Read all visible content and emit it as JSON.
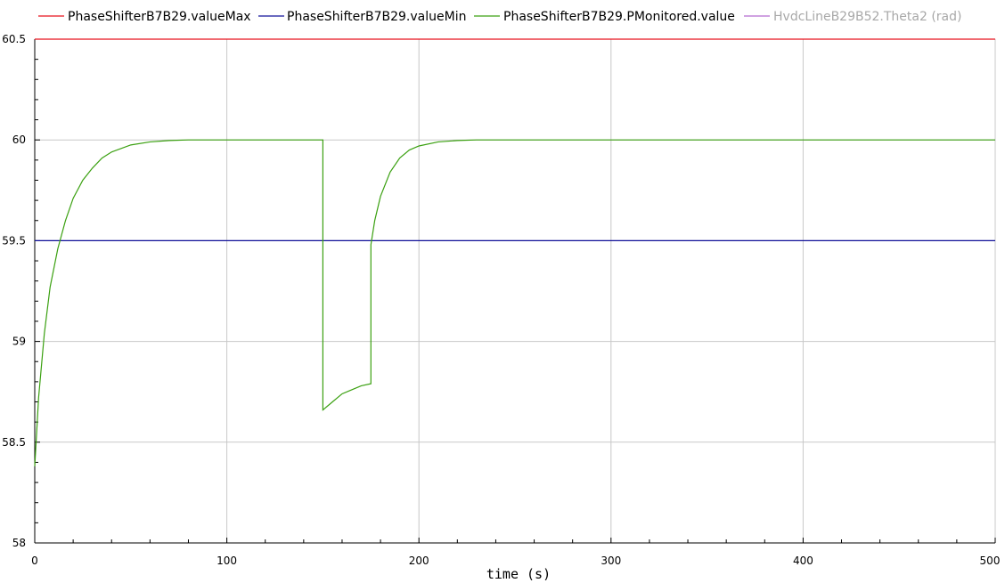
{
  "chart_data": {
    "type": "line",
    "xlabel": "time (s)",
    "ylabel": "",
    "xlim": [
      0,
      500
    ],
    "ylim": [
      58,
      60.5
    ],
    "x_ticks": [
      "0",
      "100",
      "200",
      "300",
      "400",
      "500"
    ],
    "y_ticks": [
      "58",
      "58.5",
      "59",
      "59.5",
      "60",
      "60.5"
    ],
    "grid": true,
    "legend_position": "top",
    "series": [
      {
        "name": "PhaseShifterB7B29.valueMax",
        "color": "#e8101c",
        "visible": true,
        "x": [
          0,
          500
        ],
        "y": [
          60.5,
          60.5
        ]
      },
      {
        "name": "PhaseShifterB7B29.valueMin",
        "color": "#10109a",
        "visible": true,
        "x": [
          0,
          500
        ],
        "y": [
          59.5,
          59.5
        ]
      },
      {
        "name": "PhaseShifterB7B29.PMonitored.value",
        "color": "#3aa010",
        "visible": true,
        "x": [
          0,
          2,
          5,
          8,
          12,
          16,
          20,
          25,
          30,
          35,
          40,
          50,
          60,
          70,
          80,
          100,
          150,
          150,
          155,
          160,
          165,
          170,
          175,
          175,
          177,
          180,
          185,
          190,
          195,
          200,
          210,
          220,
          230,
          240,
          300,
          400,
          500
        ],
        "y": [
          58.38,
          58.72,
          59.04,
          59.27,
          59.46,
          59.6,
          59.71,
          59.8,
          59.86,
          59.91,
          59.94,
          59.975,
          59.99,
          59.997,
          60.0,
          60.0,
          60.0,
          58.66,
          58.7,
          58.74,
          58.76,
          58.78,
          58.79,
          59.48,
          59.6,
          59.72,
          59.84,
          59.91,
          59.95,
          59.97,
          59.99,
          59.997,
          60.0,
          60.0,
          60.0,
          60.0,
          60.0
        ]
      },
      {
        "name": "HvdcLineB29B52.Theta2 (rad)",
        "color": "#b36bd0",
        "visible": false,
        "x": [],
        "y": []
      }
    ]
  }
}
